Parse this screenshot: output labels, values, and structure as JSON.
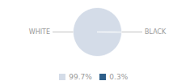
{
  "chart_data": {
    "type": "pie",
    "categories": [
      "WHITE",
      "BLACK"
    ],
    "values": [
      99.7,
      0.3
    ],
    "value_labels": [
      "99.7%",
      "0.3%"
    ],
    "colors": [
      "#d4dce8",
      "#2e5f8a"
    ],
    "legend": "bottom"
  }
}
